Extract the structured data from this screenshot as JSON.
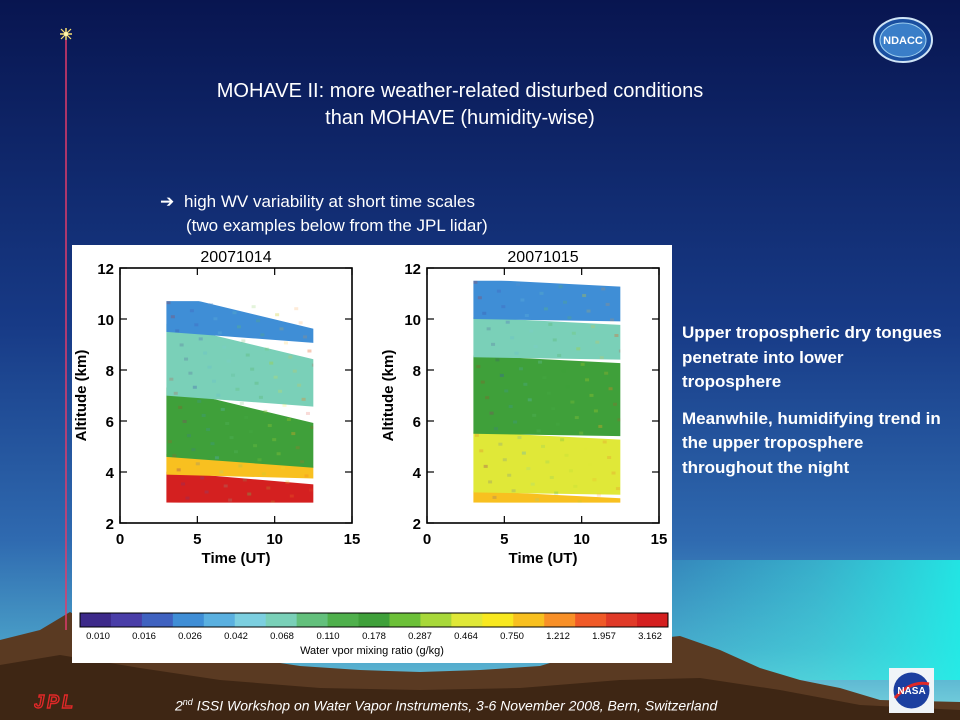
{
  "slide": {
    "title_line1": "MOHAVE II: more weather-related disturbed conditions",
    "title_line2": "than MOHAVE  (humidity-wise)",
    "bullet_line1": "high WV variability at short time scales",
    "bullet_line2": "(two examples below from the JPL lidar)",
    "note1": "Upper tropospheric dry tongues penetrate into lower troposphere",
    "note2": "Meanwhile, humidifying trend in the upper troposphere throughout the night",
    "footer_ordinal": "2",
    "footer_sup": "nd",
    "footer_text": " ISSI Workshop on Water Vapor Instruments, 3-6 November 2008, Bern, Switzerland",
    "logo_ndacc": "NDACC",
    "logo_nasa": "NASA",
    "logo_jpl": "JPL",
    "colors": {
      "background_top": "#0a1a5c",
      "background_mid": "#2a5aa8",
      "mountain": "#5a3a22",
      "text": "#ffffff"
    }
  },
  "chart_data": [
    {
      "type": "heatmap",
      "title": "20071014",
      "xlabel": "Time (UT)",
      "ylabel": "Altitude (km)",
      "xlim": [
        0,
        15
      ],
      "ylim": [
        2,
        12
      ],
      "xticks": [
        "0",
        "5",
        "10",
        "15"
      ],
      "yticks": [
        "2",
        "4",
        "6",
        "8",
        "10",
        "12"
      ],
      "data_time_range": [
        3,
        12.5
      ],
      "data_altitude_range": [
        2.8,
        10.7
      ],
      "description_layers": [
        {
          "altitude": [
            2.8,
            3.9
          ],
          "level": "3.162"
        },
        {
          "altitude": [
            3.9,
            4.6
          ],
          "level": "0.750"
        },
        {
          "altitude": [
            4.6,
            7.0
          ],
          "level": "0.178"
        },
        {
          "altitude": [
            7.0,
            9.5
          ],
          "level": "0.068"
        },
        {
          "altitude": [
            9.5,
            10.7
          ],
          "level": "0.026"
        }
      ]
    },
    {
      "type": "heatmap",
      "title": "20071015",
      "xlabel": "Time (UT)",
      "ylabel": "Altitude (km)",
      "xlim": [
        0,
        15
      ],
      "ylim": [
        2,
        12
      ],
      "xticks": [
        "0",
        "5",
        "10",
        "15"
      ],
      "yticks": [
        "2",
        "4",
        "6",
        "8",
        "10",
        "12"
      ],
      "data_time_range": [
        3,
        12.5
      ],
      "data_altitude_range": [
        2.8,
        11.5
      ],
      "description_layers": [
        {
          "altitude": [
            2.8,
            3.2
          ],
          "level": "0.750"
        },
        {
          "altitude": [
            3.2,
            5.5
          ],
          "level": "0.464"
        },
        {
          "altitude": [
            5.5,
            8.5
          ],
          "level": "0.178"
        },
        {
          "altitude": [
            8.5,
            10.0
          ],
          "level": "0.068"
        },
        {
          "altitude": [
            10.0,
            11.5
          ],
          "level": "0.026"
        }
      ]
    }
  ],
  "colorbar": {
    "label": "Water vpor mixing ratio (g/kg)",
    "tick_labels": [
      "0.010",
      "0.016",
      "0.026",
      "0.042",
      "0.068",
      "0.110",
      "0.178",
      "0.287",
      "0.464",
      "0.750",
      "1.212",
      "1.957",
      "3.162"
    ],
    "colors": [
      "#3d2a8a",
      "#4a3ea8",
      "#3f62c0",
      "#3f8ed6",
      "#5ab0e0",
      "#7ccfe0",
      "#7ad0b8",
      "#63c07c",
      "#4fb04c",
      "#3fa03a",
      "#6cc038",
      "#a8d83a",
      "#e0e838",
      "#f8e820",
      "#f8c020",
      "#f89028",
      "#f05a28",
      "#e03a28",
      "#d42020"
    ]
  }
}
